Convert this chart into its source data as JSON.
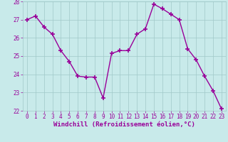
{
  "x": [
    0,
    1,
    2,
    3,
    4,
    5,
    6,
    7,
    8,
    9,
    10,
    11,
    12,
    13,
    14,
    15,
    16,
    17,
    18,
    19,
    20,
    21,
    22,
    23
  ],
  "y": [
    27.0,
    27.2,
    26.6,
    26.2,
    25.3,
    24.7,
    23.9,
    23.85,
    23.85,
    22.7,
    25.15,
    25.3,
    25.3,
    26.2,
    26.5,
    27.85,
    27.6,
    27.3,
    27.0,
    25.4,
    24.8,
    23.9,
    23.1,
    22.1
  ],
  "line_color": "#990099",
  "marker": "+",
  "marker_size": 4,
  "marker_lw": 1.2,
  "bg_color": "#c8eaea",
  "grid_color": "#a0c8c8",
  "xlabel": "Windchill (Refroidissement éolien,°C)",
  "ylim": [
    22,
    28
  ],
  "xlim": [
    -0.5,
    23.5
  ],
  "yticks": [
    22,
    23,
    24,
    25,
    26,
    27,
    28
  ],
  "xticks": [
    0,
    1,
    2,
    3,
    4,
    5,
    6,
    7,
    8,
    9,
    10,
    11,
    12,
    13,
    14,
    15,
    16,
    17,
    18,
    19,
    20,
    21,
    22,
    23
  ],
  "tick_label_size": 5.5,
  "xlabel_size": 6.5,
  "tick_color": "#990099",
  "label_color": "#990099",
  "line_width": 1.0
}
